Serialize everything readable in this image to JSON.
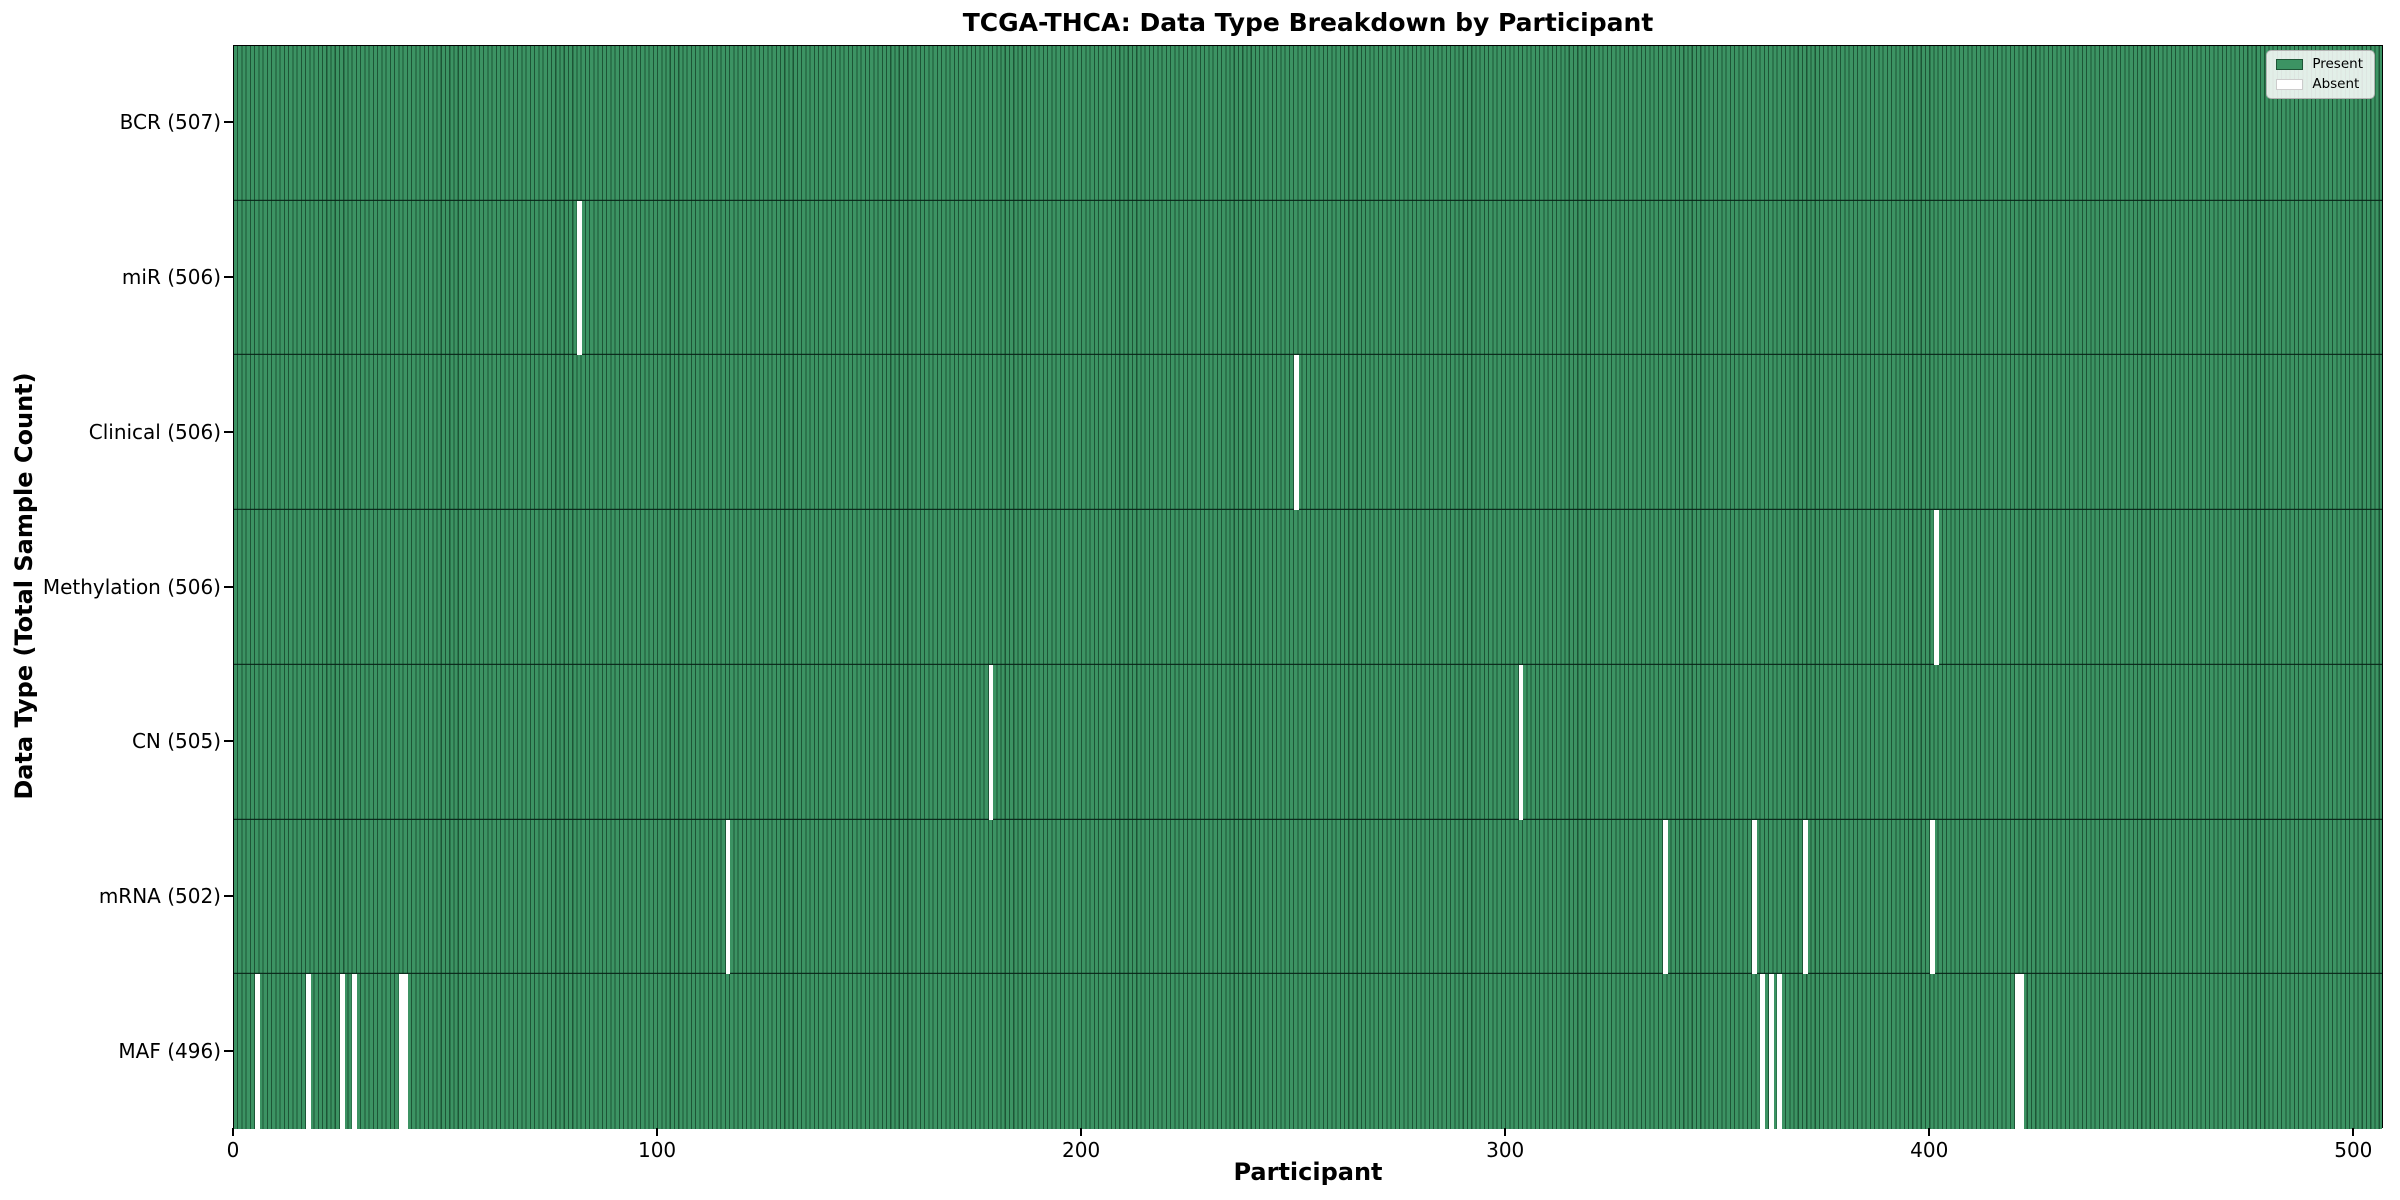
{
  "figure": {
    "title": "TCGA-THCA: Data Type Breakdown by Participant",
    "xlabel": "Participant",
    "ylabel": "Data Type (Total Sample Count)"
  },
  "chart_data": {
    "type": "heatmap",
    "title": "TCGA-THCA: Data Type Breakdown by Participant",
    "xlabel": "Participant",
    "ylabel": "Data Type (Total Sample Count)",
    "total_participants": 507,
    "xlim": [
      0,
      507
    ],
    "x_ticks": [
      0,
      100,
      200,
      300,
      400,
      500
    ],
    "grid": false,
    "legend_position": "upper right",
    "legend_items": [
      {
        "label": "Present",
        "key": "present"
      },
      {
        "label": "Absent",
        "key": "absent"
      }
    ],
    "rows": [
      {
        "label": "BCR (507)",
        "data_type": "BCR",
        "total_sample_count": 507,
        "absent_participants": []
      },
      {
        "label": "miR (506)",
        "data_type": "miR",
        "total_sample_count": 506,
        "absent_participants": [
          81
        ]
      },
      {
        "label": "Clinical (506)",
        "data_type": "Clinical",
        "total_sample_count": 506,
        "absent_participants": [
          250
        ]
      },
      {
        "label": "Methylation (506)",
        "data_type": "Methylation",
        "total_sample_count": 506,
        "absent_participants": [
          401
        ]
      },
      {
        "label": "CN (505)",
        "data_type": "CN",
        "total_sample_count": 505,
        "absent_participants": [
          178,
          303
        ]
      },
      {
        "label": "mRNA (502)",
        "data_type": "mRNA",
        "total_sample_count": 502,
        "absent_participants": [
          116,
          337,
          358,
          370,
          400
        ]
      },
      {
        "label": "MAF (496)",
        "data_type": "MAF",
        "total_sample_count": 496,
        "absent_participants": [
          5,
          17,
          25,
          28,
          39,
          40,
          360,
          362,
          364,
          420,
          421
        ]
      }
    ],
    "colors": {
      "present": "#3c9363",
      "present_edge": "#1d5536",
      "absent": "#ffffff",
      "row_separator": "#0a2416",
      "spine": "#000000"
    }
  }
}
